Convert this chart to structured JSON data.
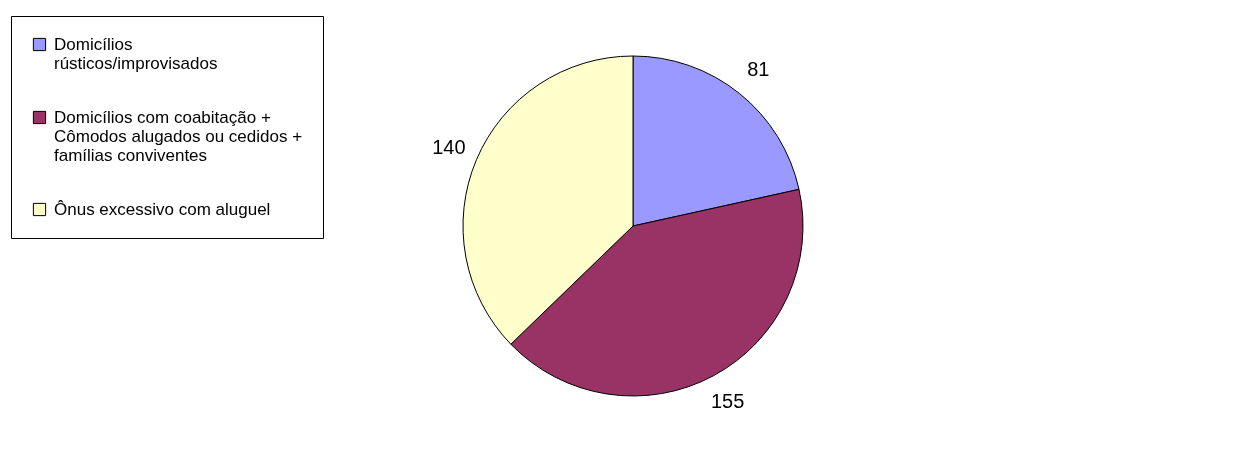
{
  "chart_data": {
    "type": "pie",
    "categories": [
      "Domicílios rústicos/improvisados",
      "Domicílios com coabitação + Cômodos alugados ou cedidos + famílias conviventes",
      "Ônus excessivo com aluguel"
    ],
    "values": [
      81,
      155,
      140
    ],
    "colors": [
      "#9999ff",
      "#993366",
      "#ffffcc"
    ],
    "data_labels": true,
    "legend": "left"
  }
}
